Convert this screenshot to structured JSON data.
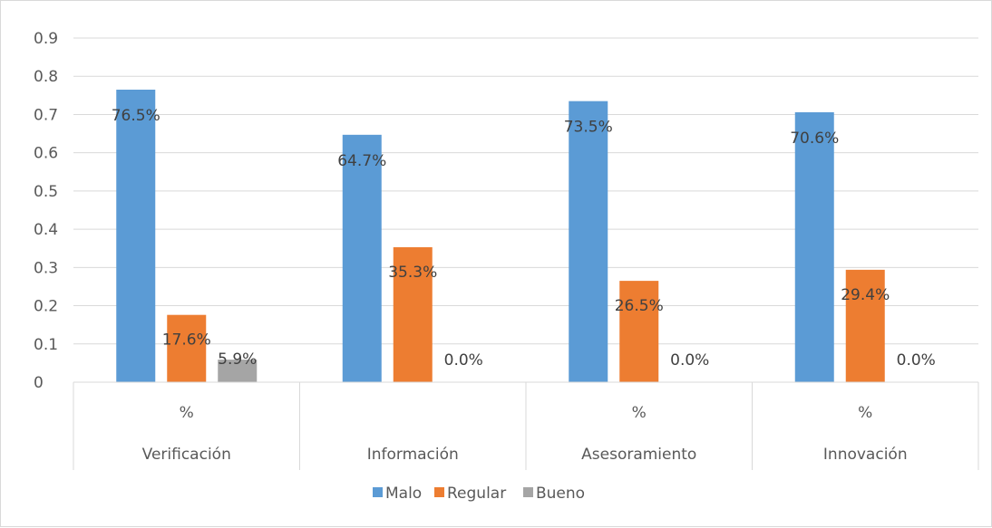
{
  "chart_data": {
    "type": "bar",
    "categories": [
      {
        "sub": "%",
        "group": "Verificación"
      },
      {
        "sub": "",
        "group": "Información"
      },
      {
        "sub": "%",
        "group": "Asesoramiento"
      },
      {
        "sub": "%",
        "group": "Innovación"
      }
    ],
    "series": [
      {
        "name": "Malo",
        "color": "#5b9bd5",
        "values": [
          0.765,
          0.647,
          0.735,
          0.706
        ],
        "labels": [
          "76.5%",
          "64.7%",
          "73.5%",
          "70.6%"
        ]
      },
      {
        "name": "Regular",
        "color": "#ed7d31",
        "values": [
          0.176,
          0.353,
          0.265,
          0.294
        ],
        "labels": [
          "17.6%",
          "35.3%",
          "26.5%",
          "29.4%"
        ]
      },
      {
        "name": "Bueno",
        "color": "#a5a5a5",
        "values": [
          0.059,
          0.0,
          0.0,
          0.0
        ],
        "labels": [
          "5.9%",
          "0.0%",
          "0.0%",
          "0.0%"
        ]
      }
    ],
    "yticks": [
      "0",
      "0.1",
      "0.2",
      "0.3",
      "0.4",
      "0.5",
      "0.6",
      "0.7",
      "0.8",
      "0.9"
    ],
    "ylim": [
      0,
      0.9
    ],
    "grid": true,
    "legend_position": "bottom"
  }
}
